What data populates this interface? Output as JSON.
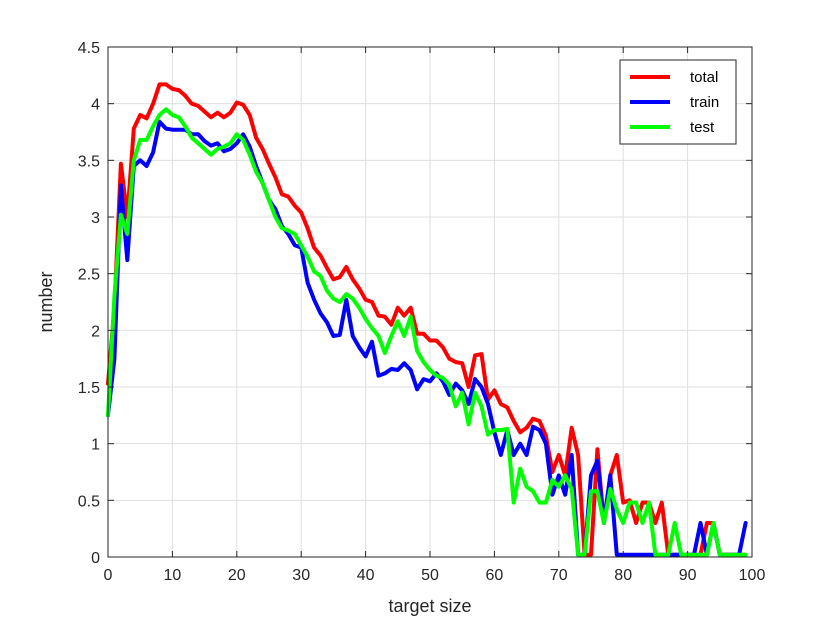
{
  "chart_data": {
    "type": "line",
    "title": "",
    "xlabel": "target size",
    "ylabel": "number",
    "xlim": [
      0,
      100
    ],
    "ylim": [
      0,
      4.5
    ],
    "xticks": [
      0,
      10,
      20,
      30,
      40,
      50,
      60,
      70,
      80,
      90,
      100
    ],
    "yticks": [
      0,
      0.5,
      1,
      1.5,
      2,
      2.5,
      3,
      3.5,
      4,
      4.5
    ],
    "ytick_labels": [
      "0",
      "0.5",
      "1",
      "1.5",
      "2",
      "2.5",
      "3",
      "3.5",
      "4",
      "4.5"
    ],
    "grid": true,
    "legend_position": "top-right",
    "x": [
      0,
      1,
      2,
      3,
      4,
      5,
      6,
      7,
      8,
      9,
      10,
      11,
      12,
      13,
      14,
      15,
      16,
      17,
      18,
      19,
      20,
      21,
      22,
      23,
      24,
      25,
      26,
      27,
      28,
      29,
      30,
      31,
      32,
      33,
      34,
      35,
      36,
      37,
      38,
      39,
      40,
      41,
      42,
      43,
      44,
      45,
      46,
      47,
      48,
      49,
      50,
      51,
      52,
      53,
      54,
      55,
      56,
      57,
      58,
      59,
      60,
      61,
      62,
      63,
      64,
      65,
      66,
      67,
      68,
      69,
      70,
      71,
      72,
      73,
      74,
      75,
      76,
      77,
      78,
      79,
      80,
      81,
      82,
      83,
      84,
      85,
      86,
      87,
      88,
      89,
      90,
      91,
      92,
      93,
      94,
      95,
      96,
      97,
      98,
      99
    ],
    "series": [
      {
        "name": "total",
        "color": "#ff0000",
        "values": [
          1.53,
          2.2,
          3.47,
          3.0,
          3.78,
          3.9,
          3.87,
          4.0,
          4.17,
          4.17,
          4.13,
          4.12,
          4.07,
          4.0,
          3.98,
          3.93,
          3.88,
          3.92,
          3.88,
          3.92,
          4.01,
          3.99,
          3.9,
          3.7,
          3.6,
          3.47,
          3.35,
          3.2,
          3.18,
          3.1,
          3.04,
          2.9,
          2.73,
          2.66,
          2.55,
          2.45,
          2.47,
          2.56,
          2.45,
          2.37,
          2.27,
          2.25,
          2.13,
          2.12,
          2.05,
          2.2,
          2.13,
          2.2,
          1.97,
          1.97,
          1.91,
          1.91,
          1.85,
          1.75,
          1.72,
          1.71,
          1.5,
          1.78,
          1.79,
          1.39,
          1.47,
          1.35,
          1.32,
          1.2,
          1.1,
          1.14,
          1.22,
          1.2,
          1.07,
          0.75,
          0.9,
          0.72,
          1.14,
          0.9,
          0.02,
          0.02,
          0.95,
          0.3,
          0.72,
          0.9,
          0.48,
          0.5,
          0.3,
          0.48,
          0.48,
          0.3,
          0.48,
          0.02,
          0.02,
          0.02,
          0.02,
          0.02,
          0.02,
          0.3,
          0.3,
          0.02,
          0.02,
          0.02,
          0.02,
          0.02
        ]
      },
      {
        "name": "train",
        "color": "#0000ff",
        "values": [
          1.25,
          1.75,
          3.28,
          2.62,
          3.45,
          3.5,
          3.45,
          3.57,
          3.84,
          3.78,
          3.77,
          3.77,
          3.77,
          3.73,
          3.73,
          3.67,
          3.63,
          3.65,
          3.58,
          3.6,
          3.65,
          3.73,
          3.62,
          3.45,
          3.3,
          3.15,
          3.07,
          2.92,
          2.85,
          2.75,
          2.73,
          2.42,
          2.27,
          2.15,
          2.07,
          1.95,
          1.96,
          2.27,
          1.95,
          1.85,
          1.77,
          1.9,
          1.6,
          1.62,
          1.66,
          1.65,
          1.71,
          1.65,
          1.48,
          1.57,
          1.55,
          1.62,
          1.55,
          1.43,
          1.53,
          1.47,
          1.35,
          1.57,
          1.5,
          1.35,
          1.1,
          0.9,
          1.12,
          0.9,
          1.0,
          0.9,
          1.15,
          1.12,
          1.0,
          0.55,
          0.72,
          0.55,
          0.9,
          0.02,
          0.02,
          0.72,
          0.85,
          0.3,
          0.72,
          0.02,
          0.02,
          0.02,
          0.02,
          0.02,
          0.02,
          0.02,
          0.02,
          0.02,
          0.02,
          0.02,
          0.02,
          0.02,
          0.3,
          0.02,
          0.3,
          0.02,
          0.02,
          0.02,
          0.02,
          0.3
        ]
      },
      {
        "name": "test",
        "color": "#00ff00",
        "values": [
          1.25,
          2.3,
          3.02,
          2.85,
          3.5,
          3.68,
          3.68,
          3.8,
          3.9,
          3.95,
          3.9,
          3.88,
          3.8,
          3.7,
          3.65,
          3.6,
          3.55,
          3.6,
          3.62,
          3.65,
          3.73,
          3.68,
          3.55,
          3.4,
          3.3,
          3.15,
          3.0,
          2.9,
          2.88,
          2.85,
          2.75,
          2.65,
          2.52,
          2.48,
          2.35,
          2.28,
          2.25,
          2.32,
          2.28,
          2.2,
          2.1,
          2.02,
          1.95,
          1.8,
          1.95,
          2.08,
          1.95,
          2.12,
          1.82,
          1.72,
          1.65,
          1.6,
          1.58,
          1.52,
          1.33,
          1.45,
          1.17,
          1.45,
          1.33,
          1.08,
          1.12,
          1.12,
          1.13,
          0.48,
          0.78,
          0.62,
          0.58,
          0.48,
          0.48,
          0.68,
          0.62,
          0.72,
          0.6,
          0.02,
          0.02,
          0.58,
          0.58,
          0.3,
          0.6,
          0.42,
          0.3,
          0.48,
          0.48,
          0.3,
          0.48,
          0.02,
          0.02,
          0.02,
          0.3,
          0.02,
          0.02,
          0.02,
          0.02,
          0.02,
          0.3,
          0.02,
          0.02,
          0.02,
          0.02,
          0.02
        ]
      }
    ]
  }
}
